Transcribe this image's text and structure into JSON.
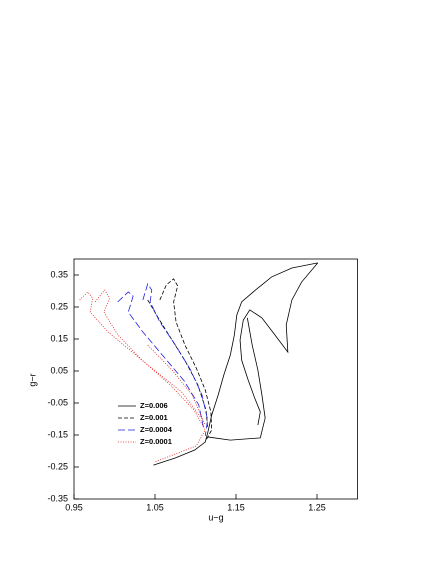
{
  "chart_data": {
    "type": "line",
    "x_label": "u−g",
    "y_label": "g−r",
    "xlim": [
      0.95,
      1.3
    ],
    "ylim": [
      -0.35,
      0.4
    ],
    "xticks": [
      0.95,
      1.05,
      1.15,
      1.25
    ],
    "yticks": [
      0.35,
      0.25,
      0.15,
      0.05,
      -0.05,
      -0.15,
      -0.25,
      -0.35
    ],
    "series": [
      {
        "name": "Z=0.006",
        "color": "#000000",
        "style": "solid",
        "x": [
          1.048,
          1.075,
          1.099,
          1.112,
          1.115,
          1.12,
          1.128,
          1.135,
          1.143,
          1.148,
          1.151,
          1.157,
          1.174,
          1.194,
          1.219,
          1.251,
          null,
          1.251,
          1.231,
          1.219,
          1.212,
          1.214,
          1.198,
          1.182,
          1.167,
          1.159,
          1.155,
          1.157,
          1.165,
          1.173,
          1.18,
          1.177,
          null,
          1.164,
          1.17,
          1.177,
          1.182,
          1.186,
          1.18,
          1.143,
          1.115
        ],
        "values": [
          -0.244,
          -0.222,
          -0.197,
          -0.172,
          -0.144,
          -0.088,
          -0.025,
          0.038,
          0.1,
          0.163,
          0.225,
          0.266,
          0.303,
          0.344,
          0.372,
          0.388,
          null,
          0.388,
          0.328,
          0.272,
          0.194,
          0.109,
          0.163,
          0.216,
          0.241,
          0.209,
          0.147,
          0.084,
          0.022,
          -0.034,
          -0.078,
          -0.119,
          null,
          0.216,
          0.131,
          0.053,
          -0.025,
          -0.097,
          -0.159,
          -0.166,
          -0.156
        ]
      },
      {
        "name": "Z=0.001",
        "color": "#000000",
        "style": "dashed",
        "x": [
          1.056,
          1.064,
          1.073,
          1.078,
          1.073,
          1.076,
          1.087,
          1.101,
          1.112,
          1.119,
          1.12,
          1.113,
          null,
          1.041,
          1.054,
          1.071,
          1.088,
          1.103,
          1.113,
          1.115
        ],
        "values": [
          0.272,
          0.319,
          0.338,
          0.316,
          0.266,
          0.203,
          0.131,
          0.059,
          -0.009,
          -0.078,
          -0.134,
          -0.166,
          null,
          0.272,
          0.216,
          0.147,
          0.078,
          0.006,
          -0.072,
          -0.128
        ]
      },
      {
        "name": "Z=0.0004",
        "color": "#2020e0",
        "style": "longdash",
        "x": [
          1.035,
          1.041,
          1.046,
          1.044,
          1.056,
          1.076,
          1.094,
          1.108,
          1.115,
          1.112,
          null,
          1.004,
          1.017,
          1.023,
          1.017,
          1.035,
          1.06,
          1.086,
          1.104,
          1.11
        ],
        "values": [
          0.272,
          0.322,
          0.303,
          0.266,
          0.203,
          0.128,
          0.053,
          -0.025,
          -0.103,
          -0.153,
          null,
          0.266,
          0.297,
          0.284,
          0.234,
          0.172,
          0.097,
          0.019,
          -0.056,
          -0.128
        ]
      },
      {
        "name": "Z=0.0001",
        "color": "#e02020",
        "style": "dotted",
        "x": [
          0.976,
          0.988,
          0.994,
          0.987,
          1.004,
          1.034,
          1.069,
          1.098,
          1.112,
          1.101,
          1.05,
          null,
          1.041,
          1.071,
          1.096,
          1.112,
          null,
          0.957,
          0.967,
          0.973,
          0.97,
          0.992,
          1.041,
          1.083,
          1.109
        ],
        "values": [
          0.266,
          0.303,
          0.278,
          0.234,
          0.163,
          0.084,
          0.006,
          -0.072,
          -0.134,
          -0.184,
          -0.234,
          null,
          0.131,
          0.053,
          -0.025,
          -0.119,
          null,
          0.272,
          0.297,
          0.278,
          0.234,
          0.172,
          0.069,
          -0.016,
          -0.103
        ]
      }
    ]
  }
}
